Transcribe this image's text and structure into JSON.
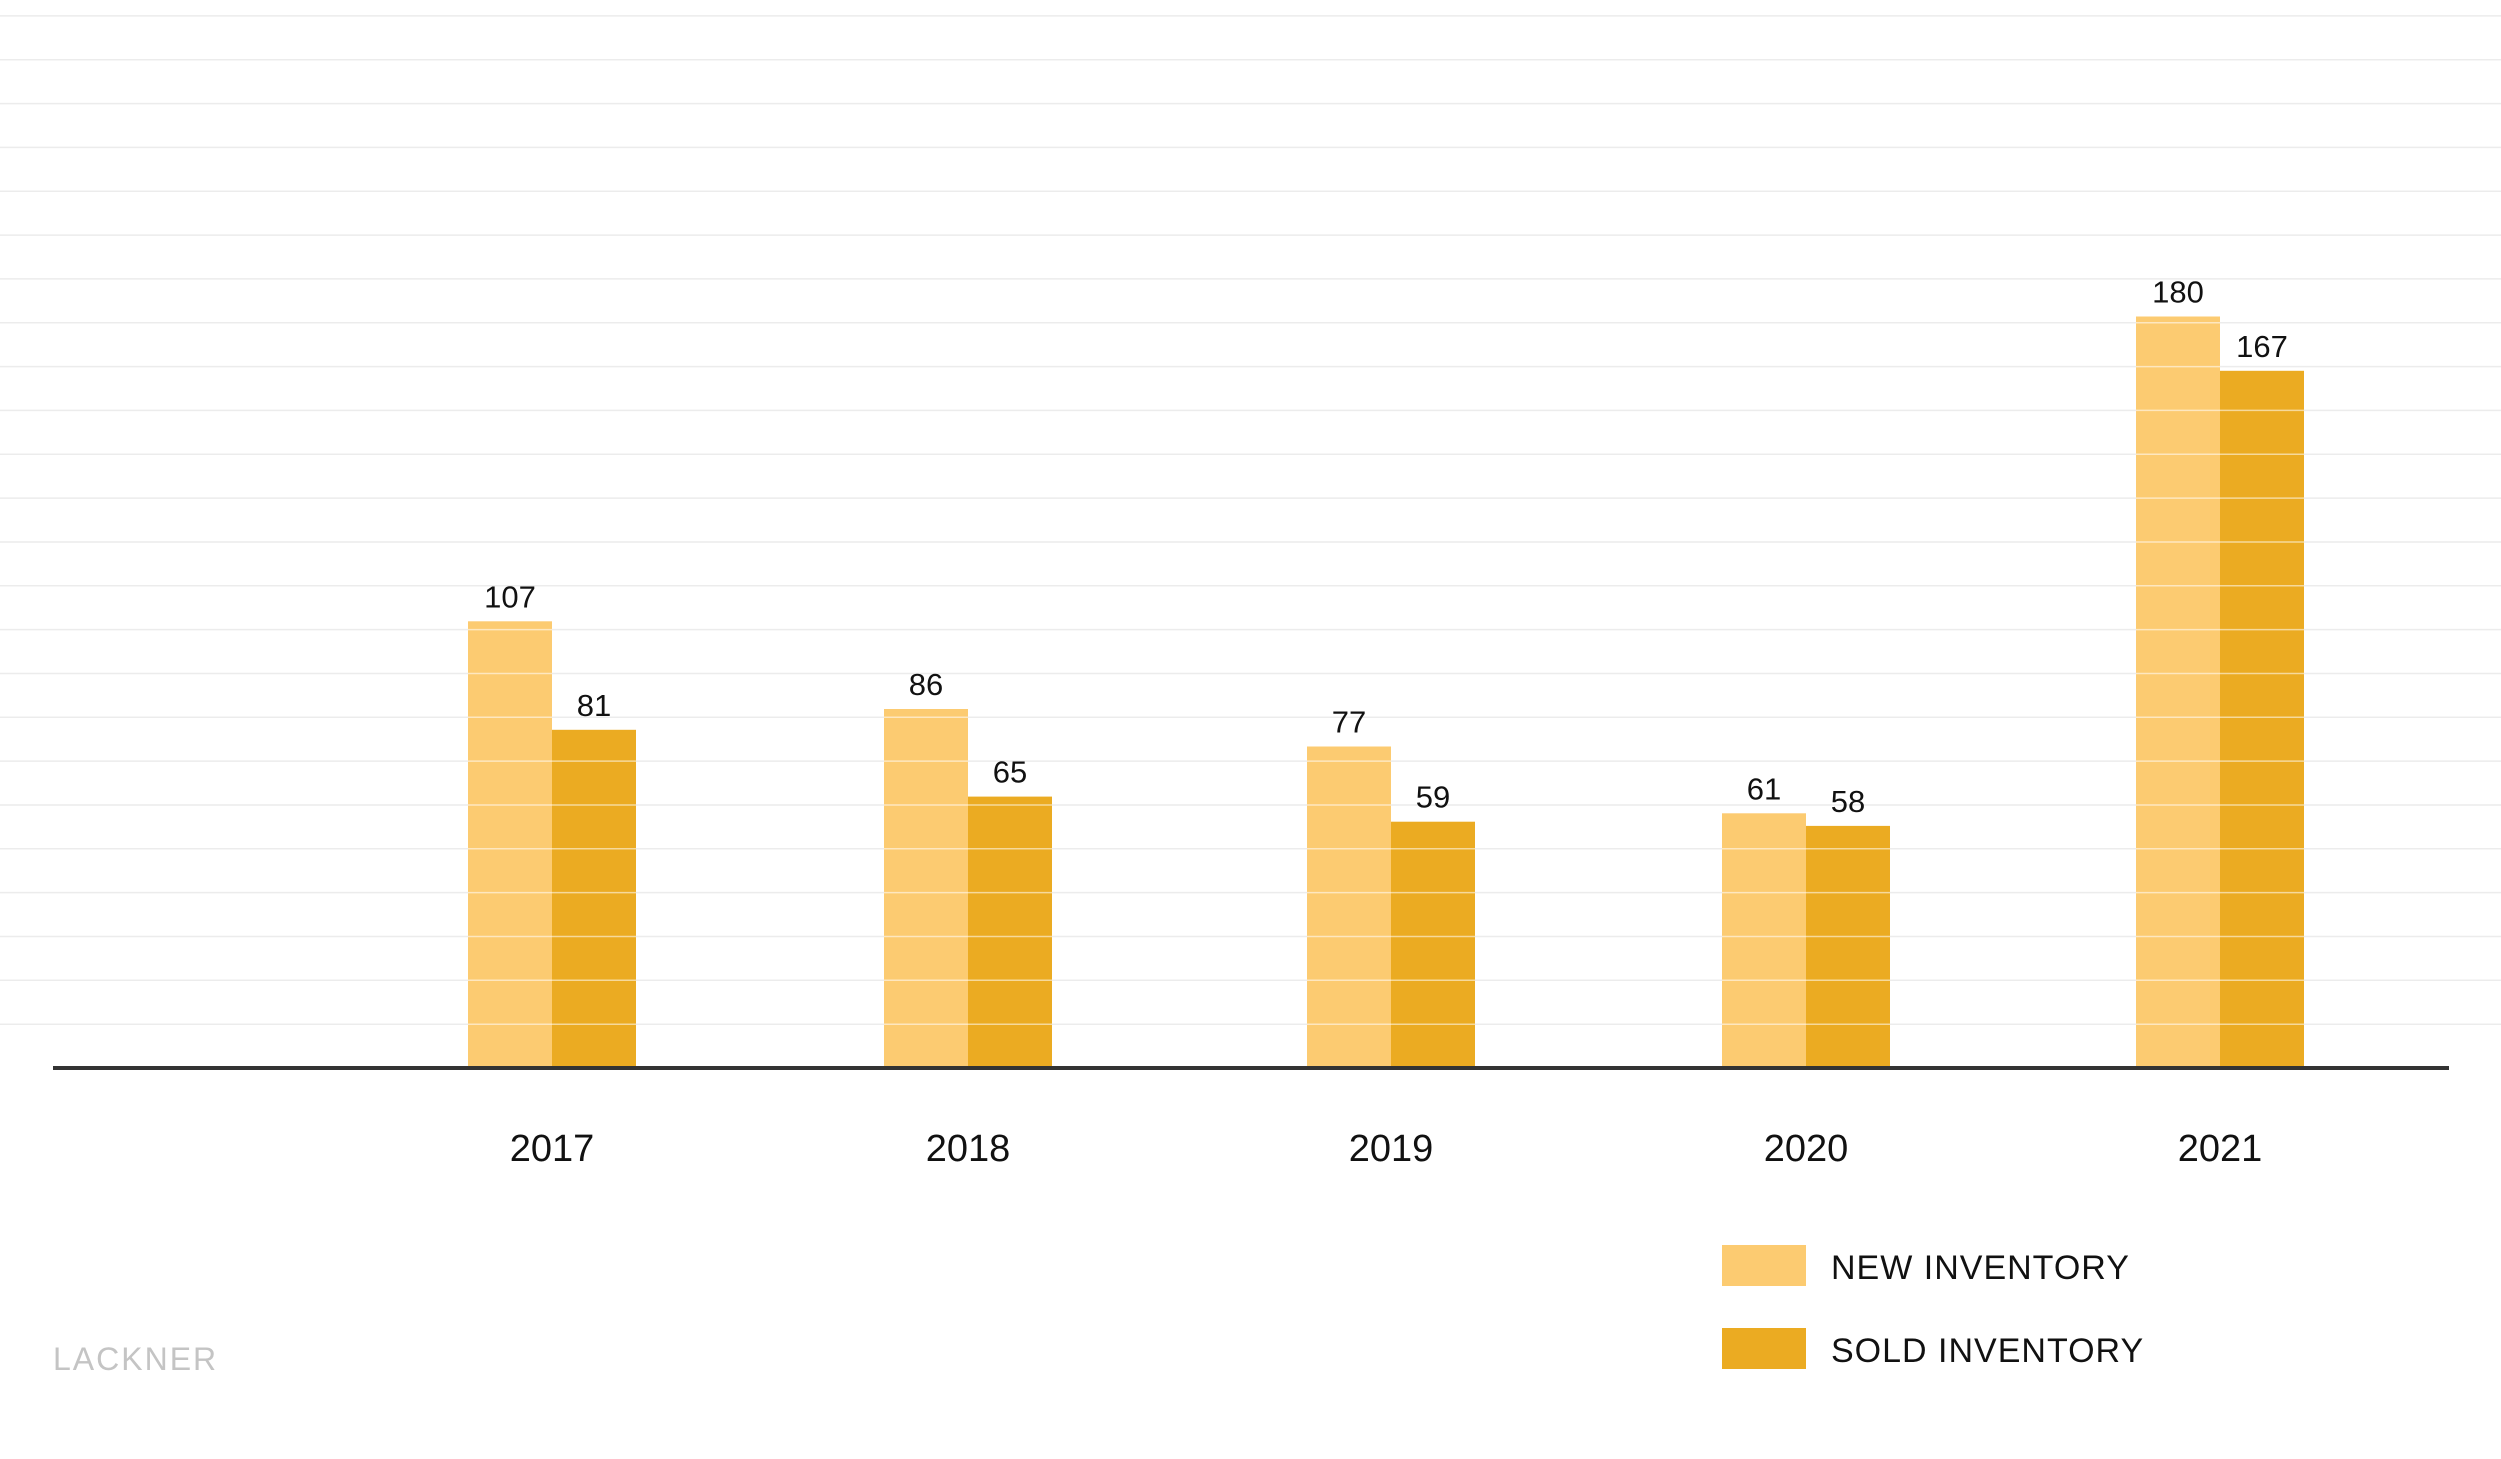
{
  "chart_data": {
    "type": "bar",
    "categories": [
      "2017",
      "2018",
      "2019",
      "2020",
      "2021"
    ],
    "series": [
      {
        "name": "NEW INVENTORY",
        "values": [
          107,
          86,
          77,
          61,
          180
        ],
        "color": "#fccb71"
      },
      {
        "name": "SOLD INVENTORY",
        "values": [
          81,
          65,
          59,
          58,
          167
        ],
        "color": "#ebab22"
      }
    ],
    "ylim": [
      0,
      250
    ],
    "grid": true,
    "legend_position": "bottom-right",
    "axis_color": "#333333",
    "gridline_color": "#ececec"
  },
  "watermark": "LACKNER"
}
